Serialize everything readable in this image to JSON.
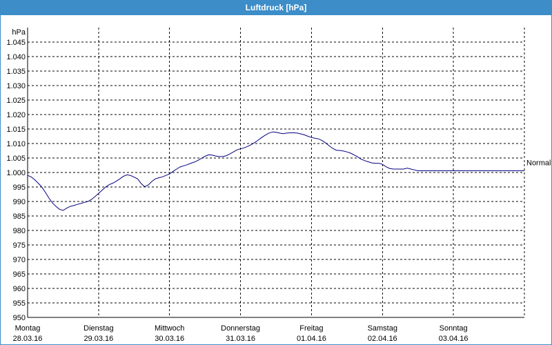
{
  "window": {
    "title": "Luftdruck [hPa]"
  },
  "chart_data": {
    "type": "line",
    "title": "Luftdruck [hPa]",
    "ylabel": "hPa",
    "ylim": [
      950,
      1050
    ],
    "yticks": [
      950,
      955,
      960,
      965,
      970,
      975,
      980,
      985,
      990,
      995,
      1000,
      1005,
      1010,
      1015,
      1020,
      1025,
      1030,
      1035,
      1040,
      1045
    ],
    "ytick_labels": [
      "950",
      "955",
      "960",
      "965",
      "970",
      "975",
      "980",
      "985",
      "990",
      "995",
      "1.000",
      "1.005",
      "1.010",
      "1.015",
      "1.020",
      "1.025",
      "1.030",
      "1.035",
      "1.040",
      "1.045"
    ],
    "xlim": [
      0,
      7
    ],
    "xticks": [
      {
        "day": "Montag",
        "date": "28.03.16"
      },
      {
        "day": "Dienstag",
        "date": "29.03.16"
      },
      {
        "day": "Mittwoch",
        "date": "30.03.16"
      },
      {
        "day": "Donnerstag",
        "date": "31.03.16"
      },
      {
        "day": "Freitag",
        "date": "01.04.16"
      },
      {
        "day": "Samstag",
        "date": "02.04.16"
      },
      {
        "day": "Sonntag",
        "date": "03.04.16"
      }
    ],
    "grid": true,
    "reference_label": "Normal",
    "reference_value": 1003.5,
    "series": [
      {
        "color": "#000080",
        "x": [
          0,
          0.05,
          0.1,
          0.15,
          0.2,
          0.25,
          0.3,
          0.35,
          0.4,
          0.45,
          0.5,
          0.55,
          0.6,
          0.65,
          0.7,
          0.75,
          0.8,
          0.85,
          0.9,
          0.95,
          1.0,
          1.05,
          1.1,
          1.15,
          1.2,
          1.25,
          1.3,
          1.35,
          1.4,
          1.45,
          1.5,
          1.55,
          1.6,
          1.65,
          1.7,
          1.75,
          1.8,
          1.85,
          1.9,
          1.95,
          2.0,
          2.05,
          2.1,
          2.15,
          2.2,
          2.25,
          2.3,
          2.35,
          2.4,
          2.45,
          2.5,
          2.55,
          2.6,
          2.65,
          2.7,
          2.75,
          2.8,
          2.85,
          2.9,
          2.95,
          3.0,
          3.05,
          3.1,
          3.15,
          3.2,
          3.25,
          3.3,
          3.35,
          3.4,
          3.45,
          3.5,
          3.55,
          3.6,
          3.65,
          3.7,
          3.75,
          3.8,
          3.85,
          3.9,
          3.95,
          4.0,
          4.05,
          4.1,
          4.15,
          4.2,
          4.25,
          4.3,
          4.35,
          4.4,
          4.45,
          4.5,
          4.55,
          4.6,
          4.65,
          4.7,
          4.75,
          4.8,
          4.85,
          4.9,
          4.95,
          5.0,
          5.05,
          5.1,
          5.15,
          5.2,
          5.25,
          5.3,
          5.35,
          5.4,
          5.45,
          5.5,
          5.55,
          5.6,
          5.65,
          5.7,
          5.75,
          5.8,
          5.85,
          5.9,
          5.95,
          6.0,
          6.05,
          6.1,
          6.15,
          6.2,
          6.25,
          6.3,
          6.35,
          6.4,
          6.45,
          6.5,
          6.55,
          6.6,
          6.65,
          6.7,
          6.75,
          6.8,
          6.85,
          6.9,
          6.95,
          7.0
        ],
        "values": [
          999.0,
          998.5,
          997.5,
          996.3,
          995.0,
          993.2,
          991.2,
          989.5,
          988.3,
          987.3,
          986.9,
          987.7,
          988.3,
          988.6,
          989.0,
          989.3,
          989.7,
          990.0,
          990.7,
          991.7,
          992.8,
          993.9,
          995.0,
          995.8,
          996.3,
          997.0,
          997.8,
          998.7,
          999.2,
          999.0,
          998.4,
          997.8,
          996.2,
          995.1,
          995.7,
          996.9,
          997.8,
          998.2,
          998.5,
          999.0,
          999.5,
          1000.4,
          1001.2,
          1001.9,
          1002.3,
          1002.7,
          1003.2,
          1003.6,
          1004.2,
          1004.9,
          1005.6,
          1006.1,
          1006.0,
          1005.7,
          1005.5,
          1005.5,
          1005.8,
          1006.4,
          1007.1,
          1007.8,
          1008.2,
          1008.5,
          1009.0,
          1009.6,
          1010.3,
          1011.2,
          1012.1,
          1012.9,
          1013.6,
          1014.0,
          1013.9,
          1013.6,
          1013.4,
          1013.6,
          1013.7,
          1013.7,
          1013.6,
          1013.3,
          1013.0,
          1012.5,
          1012.1,
          1011.8,
          1011.6,
          1011.0,
          1010.2,
          1009.2,
          1008.3,
          1007.7,
          1007.6,
          1007.4,
          1007.1,
          1006.7,
          1006.1,
          1005.4,
          1004.6,
          1004.1,
          1003.7,
          1003.3,
          1003.2,
          1003.2,
          1002.8,
          1002.0,
          1001.4,
          1001.2,
          1001.2,
          1001.2,
          1001.2,
          1001.5,
          1001.2,
          1000.9,
          1000.6,
          1000.6,
          1000.6,
          1000.6,
          1000.6,
          1000.6,
          1000.6,
          1000.6,
          1000.6,
          1000.6,
          1000.6,
          1000.6,
          1000.6,
          1000.6,
          1000.6,
          1000.6,
          1000.6,
          1000.6,
          1000.6,
          1000.6,
          1000.6,
          1000.6,
          1000.6,
          1000.6,
          1000.6,
          1000.6,
          1000.6,
          1000.6,
          1000.6,
          1000.6,
          1000.6
        ]
      }
    ]
  }
}
